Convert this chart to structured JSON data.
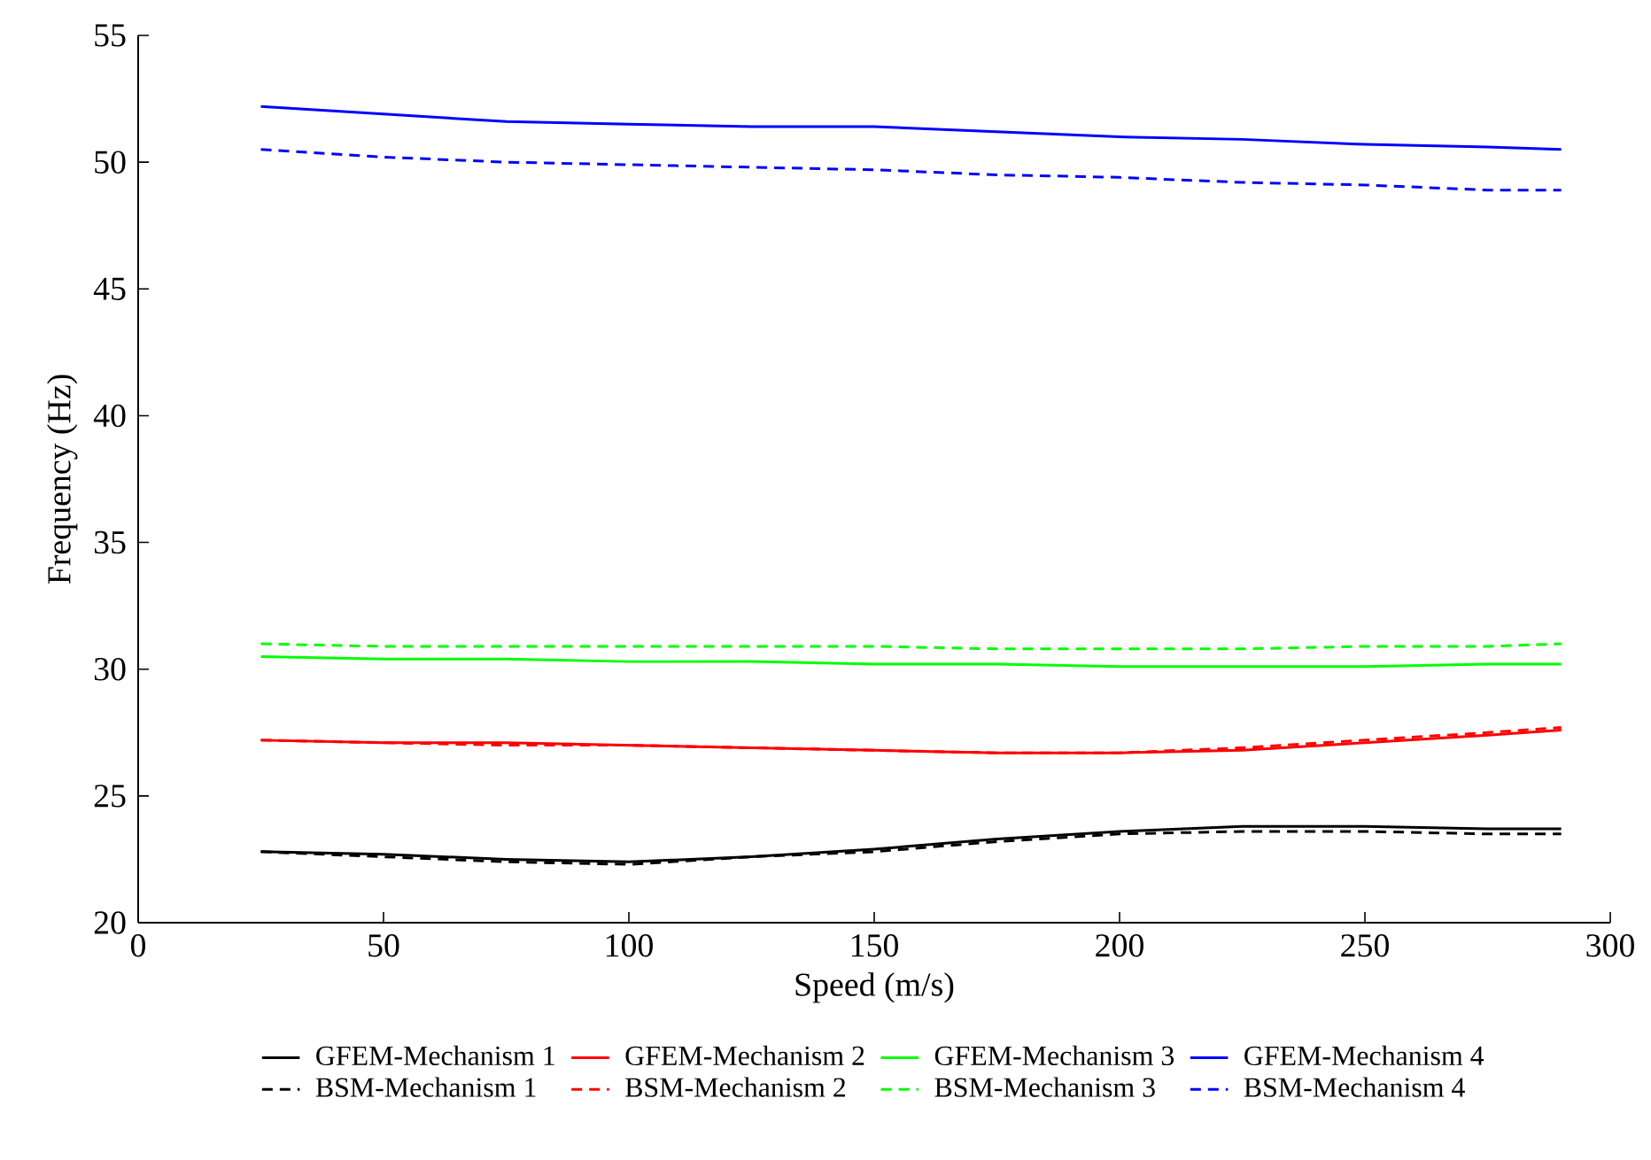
{
  "chart_data": {
    "type": "line",
    "xlabel": "Speed (m/s)",
    "ylabel": "Frequency (Hz)",
    "x": [
      25,
      50,
      75,
      100,
      125,
      150,
      175,
      200,
      225,
      250,
      275,
      290
    ],
    "xlim": [
      0,
      300
    ],
    "xticks": [
      0,
      50,
      100,
      150,
      200,
      250,
      300
    ],
    "ylim": [
      20,
      55
    ],
    "yticks": [
      20,
      25,
      30,
      35,
      40,
      45,
      50,
      55
    ],
    "legend": "bottom",
    "marker": "none",
    "series": [
      {
        "name": "GFEM-Mechanism 1",
        "color": "#000000",
        "line_style": "solid",
        "values": [
          22.8,
          22.7,
          22.5,
          22.4,
          22.6,
          22.9,
          23.3,
          23.6,
          23.8,
          23.8,
          23.7,
          23.7
        ]
      },
      {
        "name": "GFEM-Mechanism 2",
        "color": "#ff0000",
        "line_style": "solid",
        "values": [
          27.2,
          27.1,
          27.1,
          27.0,
          26.9,
          26.8,
          26.7,
          26.7,
          26.8,
          27.1,
          27.4,
          27.6
        ]
      },
      {
        "name": "GFEM-Mechanism 3",
        "color": "#00ff00",
        "line_style": "solid",
        "values": [
          30.5,
          30.4,
          30.4,
          30.3,
          30.3,
          30.2,
          30.2,
          30.1,
          30.1,
          30.1,
          30.2,
          30.2
        ]
      },
      {
        "name": "GFEM-Mechanism 4",
        "color": "#0000ff",
        "line_style": "solid",
        "values": [
          52.2,
          51.9,
          51.6,
          51.5,
          51.4,
          51.4,
          51.2,
          51.0,
          50.9,
          50.7,
          50.6,
          50.5
        ]
      },
      {
        "name": "BSM-Mechanism 1",
        "color": "#000000",
        "line_style": "dashed",
        "values": [
          22.8,
          22.6,
          22.4,
          22.3,
          22.6,
          22.8,
          23.2,
          23.5,
          23.6,
          23.6,
          23.5,
          23.5
        ]
      },
      {
        "name": "BSM-Mechanism 2",
        "color": "#ff0000",
        "line_style": "dashed",
        "values": [
          27.2,
          27.1,
          27.0,
          27.0,
          26.9,
          26.8,
          26.7,
          26.7,
          26.9,
          27.2,
          27.5,
          27.7
        ]
      },
      {
        "name": "BSM-Mechanism 3",
        "color": "#00ff00",
        "line_style": "dashed",
        "values": [
          31.0,
          30.9,
          30.9,
          30.9,
          30.9,
          30.9,
          30.8,
          30.8,
          30.8,
          30.9,
          30.9,
          31.0
        ]
      },
      {
        "name": "BSM-Mechanism 4",
        "color": "#0000ff",
        "line_style": "dashed",
        "values": [
          50.5,
          50.2,
          50.0,
          49.9,
          49.8,
          49.7,
          49.5,
          49.4,
          49.2,
          49.1,
          48.9,
          48.9
        ]
      }
    ]
  }
}
